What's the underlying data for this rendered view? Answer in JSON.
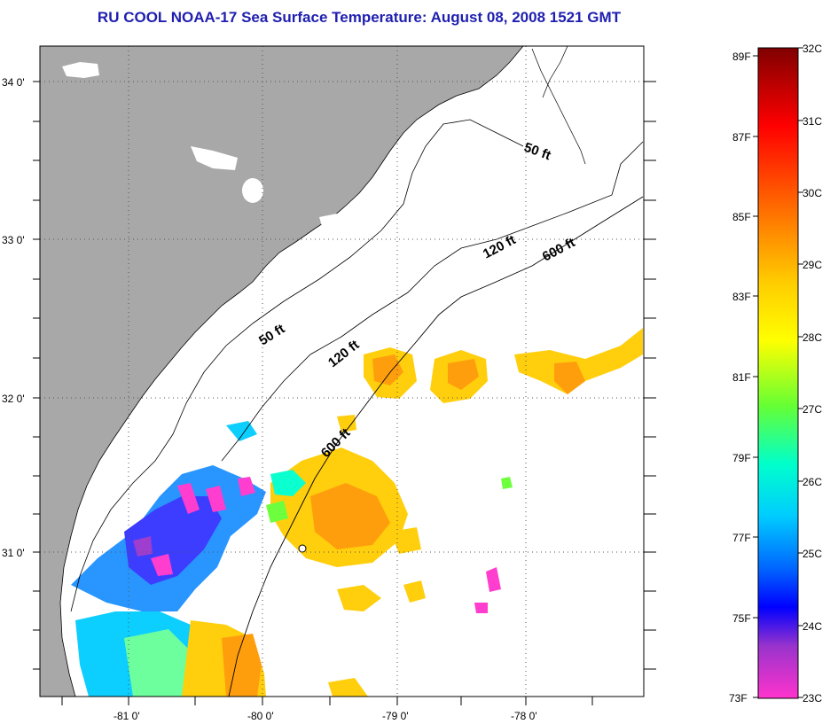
{
  "title": "RU COOL  NOAA-17  Sea Surface Temperature:  August 08, 2008 1521 GMT",
  "map": {
    "lat_labels": [
      "34 0'",
      "33 0'",
      "32 0'",
      "31 0'"
    ],
    "lon_labels": [
      "-81 0'",
      "-80 0'",
      "-79 0'",
      "-78 0'"
    ],
    "isobaths": [
      {
        "label": "50 ft",
        "id": "ne"
      },
      {
        "label": "120 ft",
        "id": "ne"
      },
      {
        "label": "600 ft",
        "id": "ne"
      },
      {
        "label": "50 ft",
        "id": "sw"
      },
      {
        "label": "120 ft",
        "id": "sw"
      },
      {
        "label": "600 ft",
        "id": "sw"
      }
    ],
    "colors": {
      "land": "#a8a8a8",
      "water_nodata": "#ffffff",
      "grid": "#555555"
    }
  },
  "colorbar": {
    "fahrenheit_labels": [
      "89F",
      "87F",
      "85F",
      "83F",
      "81F",
      "79F",
      "77F",
      "75F",
      "73F"
    ],
    "celsius_labels": [
      "32C",
      "31C",
      "30C",
      "29C",
      "28C",
      "27C",
      "26C",
      "25C",
      "24C",
      "23C"
    ],
    "stops": [
      "#800000",
      "#ff0000",
      "#ff6600",
      "#ffcc00",
      "#ffff00",
      "#66ff33",
      "#00ffcc",
      "#00ccff",
      "#0066ff",
      "#0000ff",
      "#9933cc",
      "#ff33cc"
    ]
  }
}
